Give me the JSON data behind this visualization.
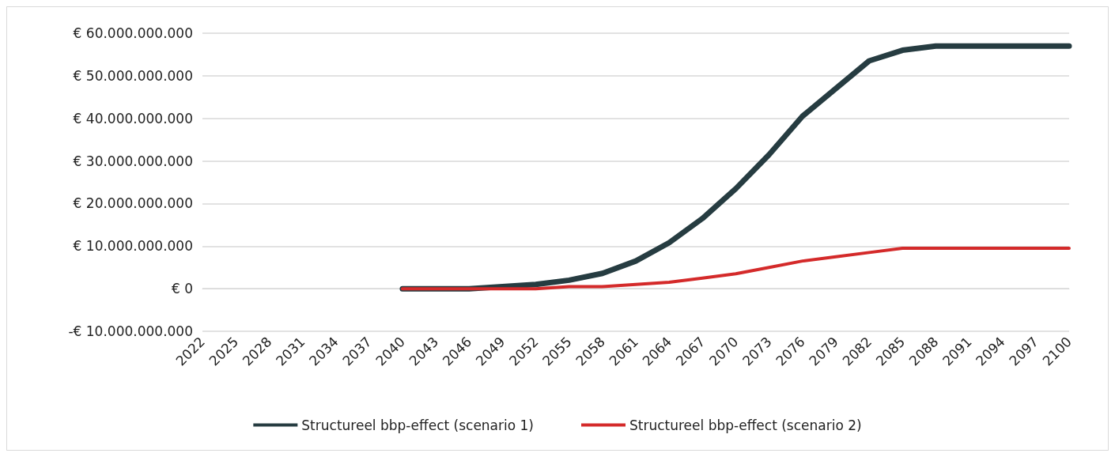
{
  "chart_data": {
    "type": "line",
    "categories": [
      "2022",
      "2025",
      "2028",
      "2031",
      "2034",
      "2037",
      "2040",
      "2043",
      "2046",
      "2049",
      "2052",
      "2055",
      "2058",
      "2061",
      "2064",
      "2067",
      "2070",
      "2073",
      "2076",
      "2079",
      "2082",
      "2085",
      "2088",
      "2091",
      "2094",
      "2097",
      "2100"
    ],
    "series": [
      {
        "name": "Structureel bbp-effect (scenario 1)",
        "color": "#263c41",
        "values": [
          null,
          null,
          null,
          null,
          null,
          null,
          0,
          0,
          0,
          500000000,
          1000000000,
          2000000000,
          3600000000,
          6500000000,
          10800000000,
          16500000000,
          23500000000,
          31500000000,
          40500000000,
          47000000000,
          53500000000,
          56000000000,
          57000000000,
          57000000000,
          57000000000,
          57000000000,
          57000000000
        ]
      },
      {
        "name": "Structureel bbp-effect (scenario 2)",
        "color": "#d42a2a",
        "values": [
          null,
          null,
          null,
          null,
          null,
          null,
          0,
          0,
          0,
          0,
          0,
          500000000,
          500000000,
          1000000000,
          1500000000,
          2500000000,
          3500000000,
          5000000000,
          6500000000,
          7500000000,
          8500000000,
          9500000000,
          9500000000,
          9500000000,
          9500000000,
          9500000000,
          9500000000
        ]
      }
    ],
    "ylim": [
      -10000000000,
      60000000000
    ],
    "yticks": [
      {
        "value": -10000000000,
        "label": "-€ 10.000.000.000"
      },
      {
        "value": 0,
        "label": "€ 0"
      },
      {
        "value": 10000000000,
        "label": "€ 10.000.000.000"
      },
      {
        "value": 20000000000,
        "label": "€ 20.000.000.000"
      },
      {
        "value": 30000000000,
        "label": "€ 30.000.000.000"
      },
      {
        "value": 40000000000,
        "label": "€ 40.000.000.000"
      },
      {
        "value": 50000000000,
        "label": "€ 50.000.000.000"
      },
      {
        "value": 60000000000,
        "label": "€ 60.000.000.000"
      }
    ],
    "grid": "y",
    "legend": "bottom",
    "marker": "none",
    "line_style": "solid"
  }
}
